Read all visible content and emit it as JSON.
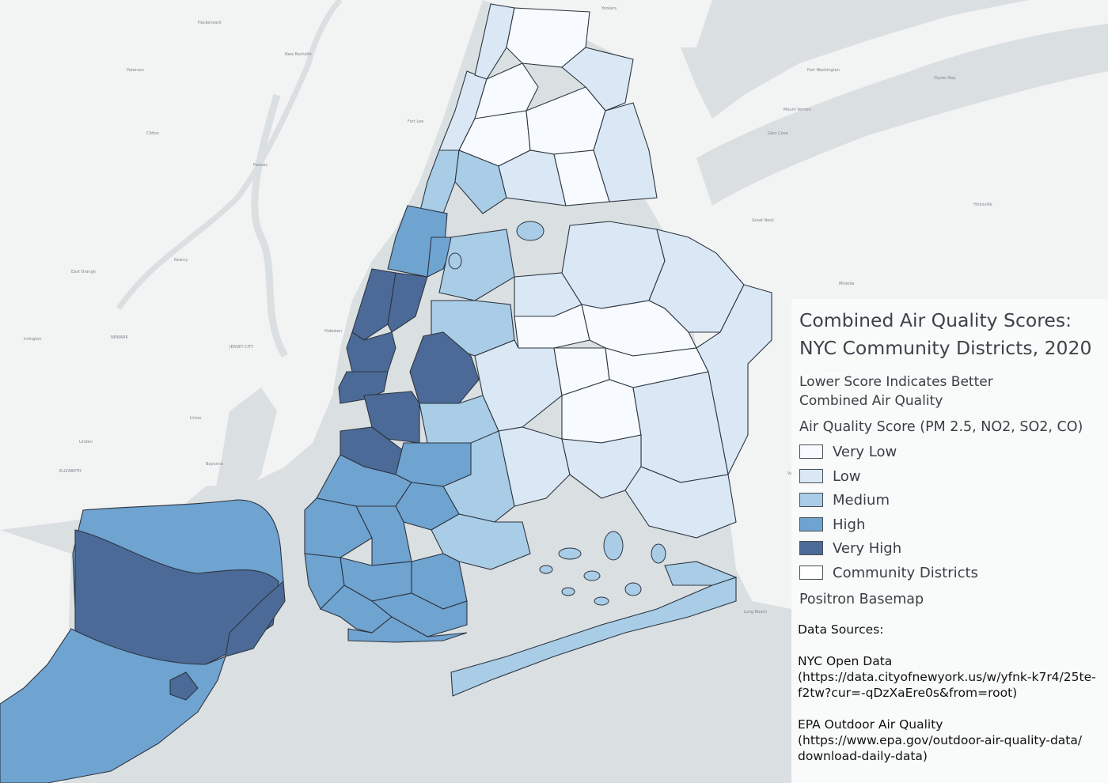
{
  "legend": {
    "title_line1": "Combined Air Quality Scores:",
    "title_line2": "NYC Community Districts, 2020",
    "subtitle_line1": "Lower Score Indicates Better",
    "subtitle_line2": "Combined Air Quality",
    "score_heading": "Air Quality Score (PM 2.5, NO2, SO2, CO)",
    "classes": [
      {
        "label": "Very Low",
        "color": "#f7fbff"
      },
      {
        "label": "Low",
        "color": "#dae8f5"
      },
      {
        "label": "Medium",
        "color": "#a9cde6"
      },
      {
        "label": "High",
        "color": "#6fa3d0"
      },
      {
        "label": "Very High",
        "color": "#4c6a97"
      },
      {
        "label": "Community Districts",
        "color": "#ffffff"
      }
    ],
    "basemap_label": "Positron Basemap"
  },
  "sources": {
    "heading": "Data Sources:",
    "source1_name": "NYC Open Data",
    "source1_url_line1": "(https://data.cityofnewyork.us/w/yfnk-k7r4/25te-",
    "source1_url_line2": "f2tw?cur=-qDzXaEre0s&from=root)",
    "source2_name": "EPA Outdoor Air Quality",
    "source2_url_line1": "(https://www.epa.gov/outdoor-air-quality-data/",
    "source2_url_line2": "download-daily-data)"
  },
  "basemap_places": [
    "NEWARK",
    "JERSEY CITY",
    "ELIZABETH",
    "Bayonne",
    "Hoboken",
    "Fort Lee",
    "Yonkers",
    "Mount Vernon",
    "New Rochelle",
    "Hackensack",
    "Paterson",
    "Clifton",
    "Passaic",
    "Kearny",
    "Irvington",
    "East Orange",
    "Union",
    "Linden",
    "Glen Cove",
    "Great Neck",
    "Hempstead",
    "Valley Stream",
    "Long Beach",
    "Garden City",
    "Mineola",
    "Port Washington",
    "Oyster Bay",
    "Hicksville"
  ]
}
